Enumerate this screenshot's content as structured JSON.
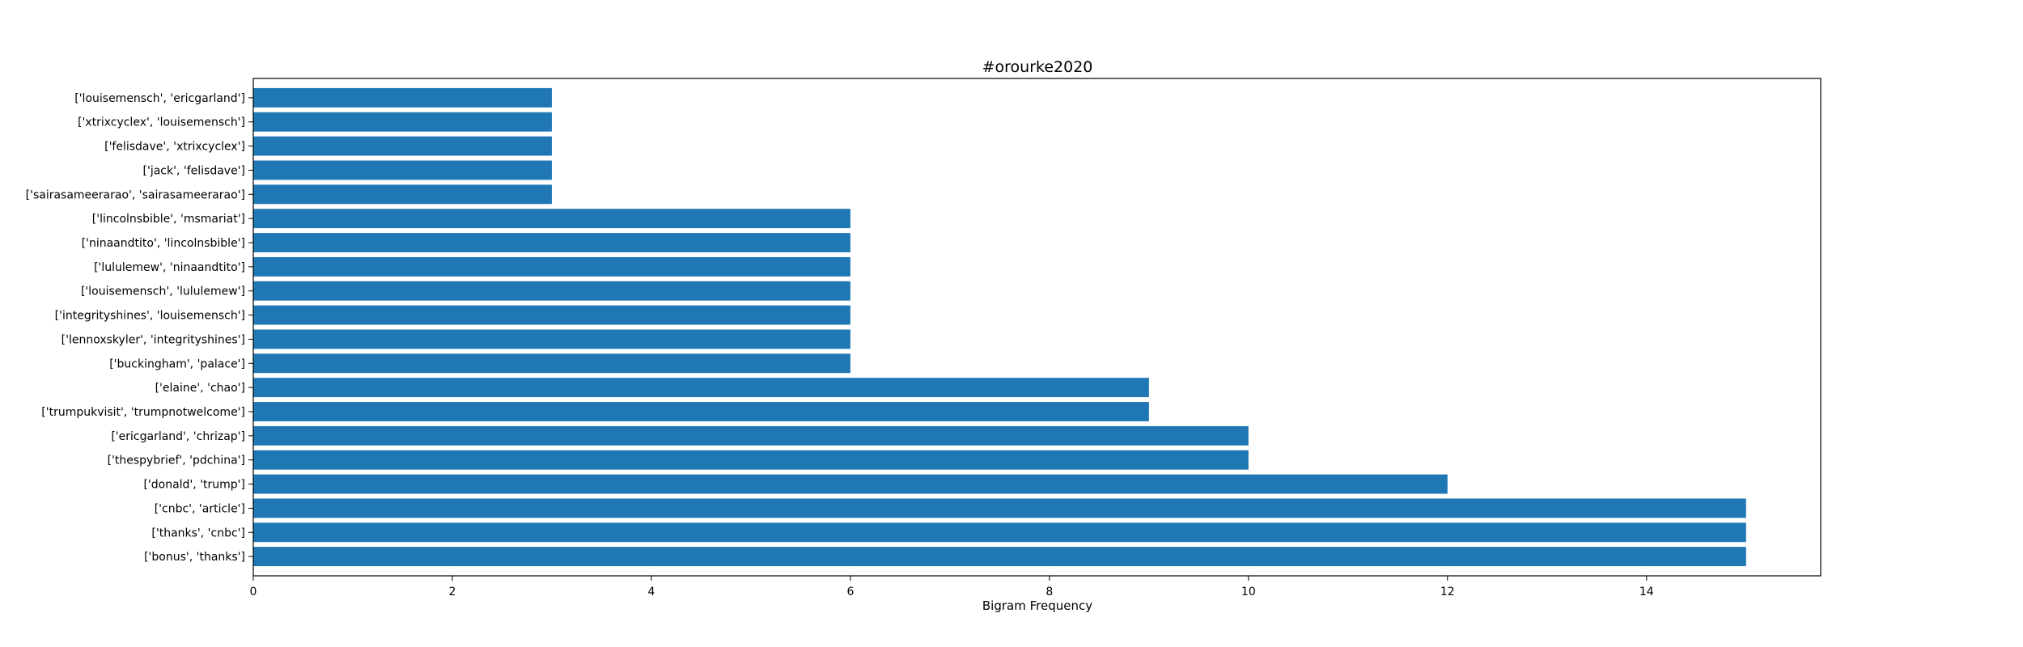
{
  "chart_data": {
    "type": "bar",
    "orientation": "horizontal",
    "title": "#orourke2020",
    "xlabel": "Bigram Frequency",
    "ylabel": "",
    "xlim": [
      0,
      15.75
    ],
    "xticks": [
      0,
      2,
      4,
      6,
      8,
      10,
      12,
      14
    ],
    "grid": false,
    "bar_color": "#1f77b4",
    "categories": [
      "['bonus', 'thanks']",
      "['thanks', 'cnbc']",
      "['cnbc', 'article']",
      "['donald', 'trump']",
      "['thespybrief', 'pdchina']",
      "['ericgarland', 'chrizap']",
      "['trumpukvisit', 'trumpnotwelcome']",
      "['elaine', 'chao']",
      "['buckingham', 'palace']",
      "['lennoxskyler', 'integrityshines']",
      "['integrityshines', 'louisemensch']",
      "['louisemensch', 'lululemew']",
      "['lululemew', 'ninaandtito']",
      "['ninaandtito', 'lincolnsbible']",
      "['lincolnsbible', 'msmariat']",
      "['sairasameerarao', 'sairasameerarao']",
      "['jack', 'felisdave']",
      "['felisdave', 'xtrixcyclex']",
      "['xtrixcyclex', 'louisemensch']",
      "['louisemensch', 'ericgarland']"
    ],
    "values": [
      15,
      15,
      15,
      12,
      10,
      10,
      9,
      9,
      6,
      6,
      6,
      6,
      6,
      6,
      6,
      3,
      3,
      3,
      3,
      3
    ]
  }
}
